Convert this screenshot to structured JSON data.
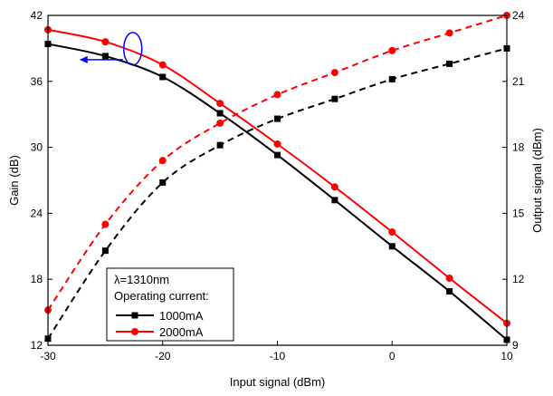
{
  "chart_data": {
    "type": "line",
    "xlabel": "Input signal (dBm)",
    "ylabel_left": "Gain (dB)",
    "ylabel_right": "Output signal (dBm)",
    "xlim": [
      -30,
      10
    ],
    "ylim_left": [
      12,
      42
    ],
    "ylim_right": [
      9,
      24
    ],
    "x_ticks": [
      -30,
      -20,
      -10,
      0,
      10
    ],
    "y_ticks_left": [
      12,
      18,
      24,
      30,
      36,
      42
    ],
    "y_ticks_right": [
      9,
      12,
      15,
      18,
      21,
      24
    ],
    "grid": false,
    "legend": {
      "placement": "bottom-left",
      "wavelength_label": "λ=1310nm",
      "heading": "Operating current:"
    },
    "colors": {
      "black": "#000000",
      "red": "#ff0000",
      "arrow": "#0000ff"
    },
    "series": [
      {
        "name": "1000mA",
        "axis": "left",
        "style": "solid",
        "color": "#000000",
        "marker": "square",
        "x": [
          -30,
          -25,
          -20,
          -15,
          -10,
          -5,
          0,
          5,
          10
        ],
        "y": [
          39.4,
          38.3,
          36.4,
          33.1,
          29.3,
          25.2,
          21.0,
          16.9,
          12.5
        ]
      },
      {
        "name": "2000mA",
        "axis": "left",
        "style": "solid",
        "color": "#ff0000",
        "marker": "circle",
        "x": [
          -30,
          -25,
          -20,
          -15,
          -10,
          -5,
          0,
          5,
          10
        ],
        "y": [
          40.7,
          39.6,
          37.5,
          34.0,
          30.3,
          26.4,
          22.3,
          18.1,
          14.0
        ]
      },
      {
        "name": "1000mA",
        "axis": "right",
        "style": "dashed",
        "color": "#000000",
        "marker": "square",
        "x": [
          -30,
          -25,
          -20,
          -15,
          -10,
          -5,
          0,
          5,
          10
        ],
        "y": [
          9.3,
          13.3,
          16.4,
          18.1,
          19.3,
          20.2,
          21.1,
          21.8,
          22.5
        ]
      },
      {
        "name": "2000mA",
        "axis": "right",
        "style": "dashed",
        "color": "#ff0000",
        "marker": "circle",
        "x": [
          -30,
          -25,
          -20,
          -15,
          -10,
          -5,
          0,
          5,
          10
        ],
        "y": [
          10.6,
          14.5,
          17.4,
          19.1,
          20.4,
          21.4,
          22.4,
          23.2,
          24.0
        ]
      }
    ]
  }
}
